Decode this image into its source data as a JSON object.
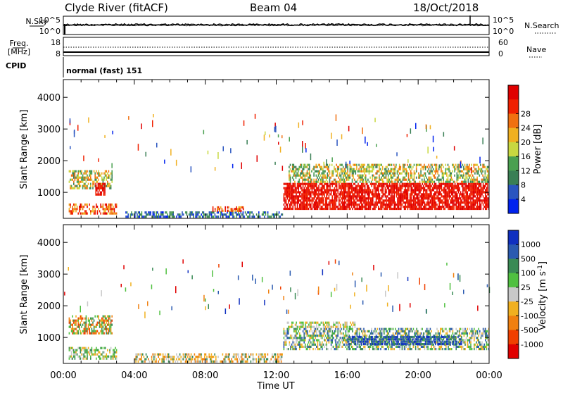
{
  "header": {
    "title": "Clyde River (fitACF)",
    "beam": "Beam 04",
    "date": "18/Oct/2018"
  },
  "nsky_panel": {
    "left_label": "N.Sky",
    "left_ticks": [
      "10^5",
      "10^0"
    ],
    "right_label": "N.Search",
    "right_ticks": [
      "10^5",
      "10^0"
    ]
  },
  "freq_panel": {
    "left_label_1": "Freq.",
    "left_label_2": "[MHz]",
    "left_ticks": [
      "18",
      "8"
    ],
    "right_label": "Nave",
    "right_ticks": [
      "60",
      "0"
    ]
  },
  "cpid": {
    "label": "CPID",
    "value": "normal (fast) 151"
  },
  "x_axis": {
    "label": "Time UT",
    "ticks": [
      "00:00",
      "04:00",
      "08:00",
      "12:00",
      "16:00",
      "20:00",
      "00:00"
    ]
  },
  "chart_data": [
    {
      "type": "heatmap",
      "name": "power",
      "ylabel": "Slant Range [km]",
      "ylim": [
        180,
        4560
      ],
      "yticks": [
        1000,
        2000,
        3000,
        4000
      ],
      "xlim_hours": [
        0,
        24
      ],
      "colorbar": {
        "label": "Power [dB]",
        "ticks": [
          4,
          8,
          12,
          16,
          20,
          24,
          28
        ],
        "colors": [
          "#0022ee",
          "#2a55c0",
          "#3a7f55",
          "#4aa050",
          "#c8d840",
          "#f0b020",
          "#f07010",
          "#f02000",
          "#e00000"
        ]
      },
      "regions": [
        {
          "t": [
            0.3,
            2.8
          ],
          "r": [
            1100,
            1700
          ],
          "level": "green/orange"
        },
        {
          "t": [
            1.8,
            2.4
          ],
          "r": [
            900,
            1300
          ],
          "level": "red"
        },
        {
          "t": [
            0.3,
            3.0
          ],
          "r": [
            300,
            650
          ],
          "level": "orange/red"
        },
        {
          "t": [
            12.4,
            24.0
          ],
          "r": [
            450,
            1300
          ],
          "level": "red"
        },
        {
          "t": [
            12.7,
            24.0
          ],
          "r": [
            1300,
            1900
          ],
          "level": "green/orange"
        },
        {
          "t": [
            3.5,
            12.4
          ],
          "r": [
            200,
            400
          ],
          "level": "blue/green"
        },
        {
          "t": [
            8.4,
            10.2
          ],
          "r": [
            400,
            560
          ],
          "level": "orange/red"
        }
      ]
    },
    {
      "type": "heatmap",
      "name": "velocity",
      "ylabel": "Slant Range [km]",
      "ylim": [
        180,
        4560
      ],
      "yticks": [
        1000,
        2000,
        3000,
        4000
      ],
      "xlim_hours": [
        0,
        24
      ],
      "colorbar": {
        "label": "Velocity [m s^-1]",
        "ticks": [
          "1000",
          "500",
          "100",
          "25",
          "-25",
          "-100",
          "-500",
          "-1000"
        ],
        "colors": [
          "#1030c0",
          "#2a5ab0",
          "#3a8a55",
          "#50c040",
          "#c8c8c8",
          "#f0b020",
          "#f08010",
          "#f04000",
          "#e00000"
        ]
      },
      "regions": [
        {
          "t": [
            0.3,
            2.8
          ],
          "r": [
            1100,
            1700
          ],
          "level": "orange/green"
        },
        {
          "t": [
            0.3,
            3.0
          ],
          "r": [
            300,
            700
          ],
          "level": "green/grey"
        },
        {
          "t": [
            12.4,
            24.0
          ],
          "r": [
            600,
            1300
          ],
          "level": "green/blue"
        },
        {
          "t": [
            16.0,
            22.5
          ],
          "r": [
            750,
            1050
          ],
          "level": "blue"
        },
        {
          "t": [
            12.6,
            16.5
          ],
          "r": [
            1300,
            1500
          ],
          "level": "grey"
        },
        {
          "t": [
            4.0,
            12.4
          ],
          "r": [
            200,
            500
          ],
          "level": "grey/orange"
        }
      ]
    }
  ]
}
